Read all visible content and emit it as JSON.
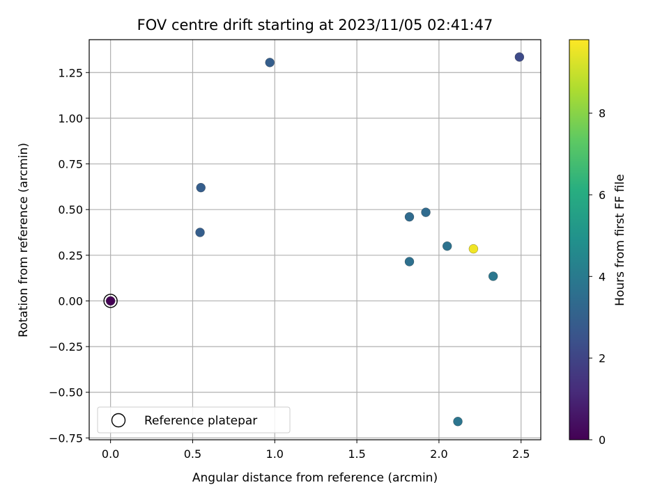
{
  "chart_data": {
    "type": "scatter",
    "title": "FOV centre drift starting at 2023/11/05 02:41:47",
    "xlabel": "Angular distance from reference (arcmin)",
    "ylabel": "Rotation from reference (arcmin)",
    "xlim": [
      -0.13,
      2.62
    ],
    "ylim": [
      -0.76,
      1.43
    ],
    "xticks": [
      "0.0",
      "0.5",
      "1.0",
      "1.5",
      "2.0",
      "2.5"
    ],
    "xtick_values": [
      0.0,
      0.5,
      1.0,
      1.5,
      2.0,
      2.5
    ],
    "yticks": [
      "1.25",
      "1.00",
      "0.75",
      "0.50",
      "0.25",
      "0.00",
      "−0.25",
      "−0.50",
      "−0.75"
    ],
    "ytick_values": [
      1.25,
      1.0,
      0.75,
      0.5,
      0.25,
      0.0,
      -0.25,
      -0.5,
      -0.75
    ],
    "grid": true,
    "legend": {
      "placement": "lower-left",
      "entries": [
        "Reference platepar"
      ]
    },
    "colorbar": {
      "label": "Hours from first FF file",
      "range": [
        0,
        9.8
      ],
      "ticks": [
        "0",
        "2",
        "4",
        "6",
        "8"
      ],
      "tick_values": [
        0,
        2,
        4,
        6,
        8
      ],
      "colormap": "viridis"
    },
    "points": [
      {
        "x": 0.0,
        "y": 0.0,
        "hours": 0.0
      },
      {
        "x": 0.55,
        "y": 0.62,
        "hours": 2.9
      },
      {
        "x": 0.545,
        "y": 0.375,
        "hours": 2.9
      },
      {
        "x": 0.97,
        "y": 1.305,
        "hours": 2.9
      },
      {
        "x": 1.82,
        "y": 0.46,
        "hours": 3.4
      },
      {
        "x": 1.92,
        "y": 0.485,
        "hours": 3.4
      },
      {
        "x": 1.82,
        "y": 0.215,
        "hours": 3.6
      },
      {
        "x": 2.05,
        "y": 0.3,
        "hours": 3.7
      },
      {
        "x": 2.21,
        "y": 0.285,
        "hours": 9.6
      },
      {
        "x": 2.33,
        "y": 0.135,
        "hours": 3.9
      },
      {
        "x": 2.115,
        "y": -0.66,
        "hours": 3.8
      },
      {
        "x": 2.49,
        "y": 1.335,
        "hours": 2.2
      }
    ],
    "reference_point": {
      "x": 0.0,
      "y": 0.0
    }
  }
}
